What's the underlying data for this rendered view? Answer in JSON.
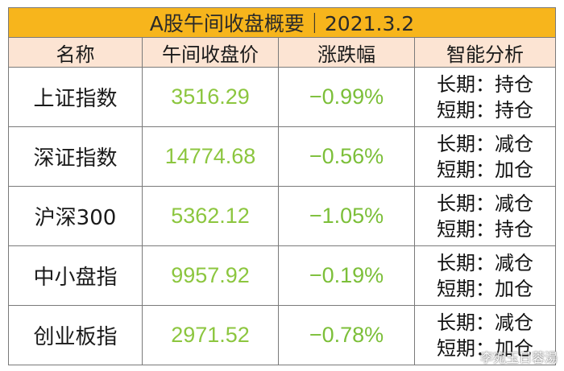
{
  "title": "A股午间收盘概要｜2021.3.2",
  "headers": [
    "名称",
    "午间收盘价",
    "涨跌幅",
    "智能分析"
  ],
  "rows": [
    {
      "name": "上证指数",
      "price": "3516.29",
      "change": "−0.99%",
      "long": "长期：持仓",
      "short": "短期：持仓"
    },
    {
      "name": "深证指数",
      "price": "14774.68",
      "change": "−0.56%",
      "long": "长期：减仓",
      "short": "短期：加仓"
    },
    {
      "name": "沪深300",
      "price": "5362.12",
      "change": "−1.05%",
      "long": "长期：减仓",
      "short": "短期：持仓"
    },
    {
      "name": "中小盘指",
      "price": "9957.92",
      "change": "−0.19%",
      "long": "长期：减仓",
      "short": "短期：加仓"
    },
    {
      "name": "创业板指",
      "price": "2971.52",
      "change": "−0.78%",
      "long": "长期：减仓",
      "short": "短期：加仓"
    }
  ],
  "watermark": "李宛玉日蓉湯",
  "colors": {
    "title_bg": "#f7b51c",
    "header_bg": "#fce4d3",
    "value_green": "#8cc63f",
    "border": "#7a7a7a"
  }
}
